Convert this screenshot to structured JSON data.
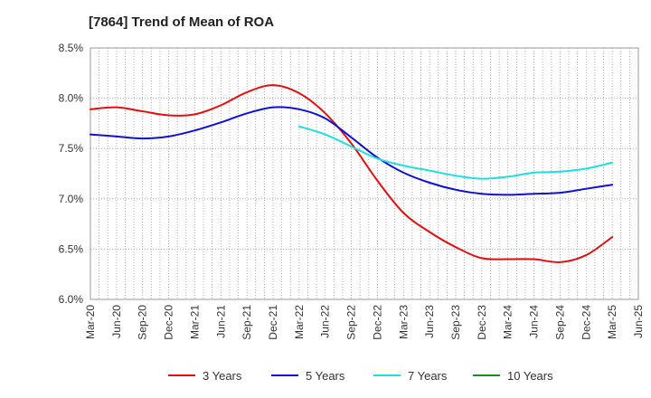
{
  "chart_data": {
    "type": "line",
    "title": "[7864]  Trend of Mean of ROA",
    "xlabel": "",
    "ylabel": "",
    "ylim": [
      6.0,
      8.5
    ],
    "yticks": [
      "6.0%",
      "6.5%",
      "7.0%",
      "7.5%",
      "8.0%",
      "8.5%"
    ],
    "x_categories": [
      "Mar-20",
      "Jun-20",
      "Sep-20",
      "Dec-20",
      "Mar-21",
      "Jun-21",
      "Sep-21",
      "Dec-21",
      "Mar-22",
      "Jun-22",
      "Sep-22",
      "Dec-22",
      "Mar-23",
      "Jun-23",
      "Sep-23",
      "Dec-23",
      "Mar-24",
      "Jun-24",
      "Sep-24",
      "Dec-24",
      "Mar-25",
      "Jun-25"
    ],
    "grid": true,
    "legend_position": "bottom",
    "series": [
      {
        "name": "3 Years",
        "color": "#dd1111",
        "values": [
          7.89,
          7.91,
          7.87,
          7.83,
          7.84,
          7.93,
          8.06,
          8.13,
          8.05,
          7.85,
          7.55,
          7.18,
          6.86,
          6.67,
          6.52,
          6.41,
          6.4,
          6.4,
          6.37,
          6.44,
          6.62,
          null
        ]
      },
      {
        "name": "5 Years",
        "color": "#1111cc",
        "values": [
          7.64,
          7.62,
          7.6,
          7.62,
          7.68,
          7.76,
          7.85,
          7.91,
          7.89,
          7.8,
          7.61,
          7.41,
          7.26,
          7.16,
          7.09,
          7.05,
          7.04,
          7.05,
          7.06,
          7.1,
          7.14,
          null
        ]
      },
      {
        "name": "7 Years",
        "color": "#22dddd",
        "values": [
          null,
          null,
          null,
          null,
          null,
          null,
          null,
          null,
          7.72,
          7.64,
          7.52,
          7.4,
          7.33,
          7.28,
          7.23,
          7.2,
          7.22,
          7.26,
          7.27,
          7.3,
          7.36,
          null
        ]
      },
      {
        "name": "10 Years",
        "color": "#228822",
        "values": [
          null,
          null,
          null,
          null,
          null,
          null,
          null,
          null,
          null,
          null,
          null,
          null,
          null,
          null,
          null,
          null,
          null,
          null,
          null,
          null,
          null,
          null
        ]
      }
    ]
  }
}
